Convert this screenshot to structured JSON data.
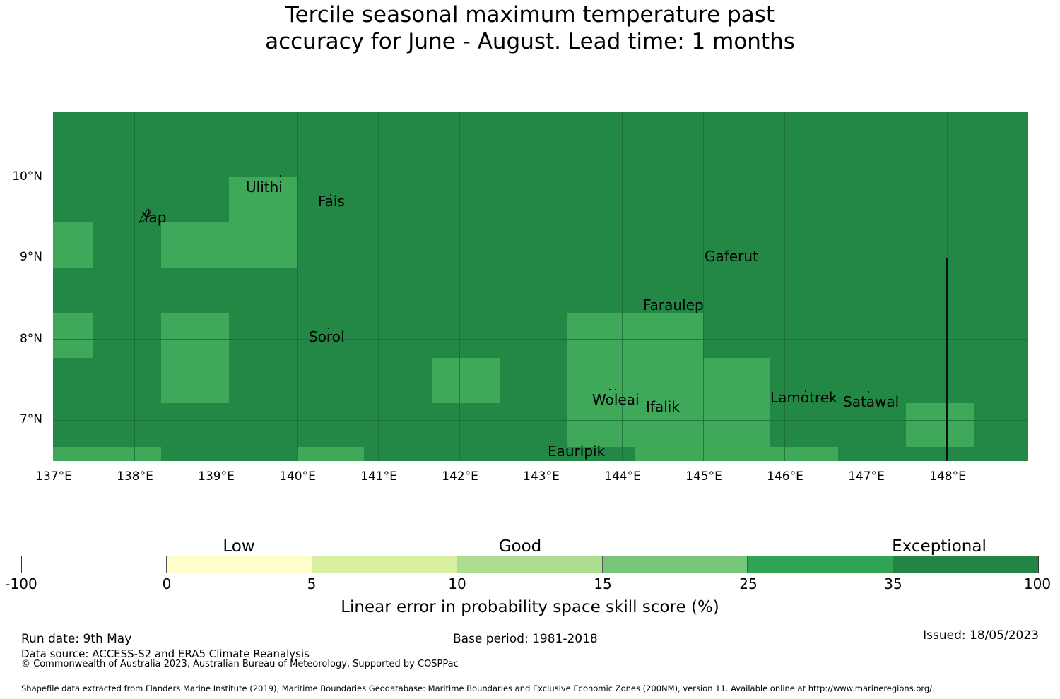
{
  "title": {
    "line1": "Tercile seasonal maximum temperature past",
    "line2": "accuracy for June - August. Lead time: 1 months"
  },
  "map": {
    "background_color": "#238745",
    "highlight_color": "#3fa95a",
    "latitude_labels": [
      "10°N",
      "9°N",
      "8°N",
      "7°N"
    ],
    "longitude_labels": [
      "137°E",
      "138°E",
      "139°E",
      "140°E",
      "141°E",
      "142°E",
      "143°E",
      "144°E",
      "145°E",
      "146°E",
      "147°E",
      "148°E"
    ],
    "places": [
      "Ulithi",
      "Fais",
      "Yap",
      "Gaferut",
      "Faraulep",
      "Sorol",
      "Woleai",
      "Ifalik",
      "Lamotrek",
      "Satawal",
      "Eauripik"
    ]
  },
  "colorbar": {
    "categories": [
      "Low",
      "Good",
      "Exceptional"
    ],
    "ticks": [
      "-100",
      "0",
      "5",
      "10",
      "15",
      "25",
      "35",
      "100"
    ],
    "colors": [
      "#ffffff",
      "#ffffcc",
      "#d9f0a3",
      "#addd8e",
      "#78c679",
      "#31a354",
      "#238443"
    ],
    "label": "Linear error in probability space skill score (%)"
  },
  "footer": {
    "run_date": "Run date: 9th May",
    "data_source": "Data source: ACCESS-S2 and ERA5 Climate Reanalysis",
    "copyright": "© Commonwealth of Australia 2023, Australian Bureau of Meteorology, Supported by COSPPac",
    "base_period": "Base period: 1981-2018",
    "issued": "Issued: 18/05/2023",
    "shapefile": "Shapefile data extracted from Flanders Marine Institute (2019), Maritime Boundaries Geodatabase: Maritime Boundaries and Exclusive Economic Zones (200NM), version 11. Available online at http://www.marineregions.org/."
  }
}
